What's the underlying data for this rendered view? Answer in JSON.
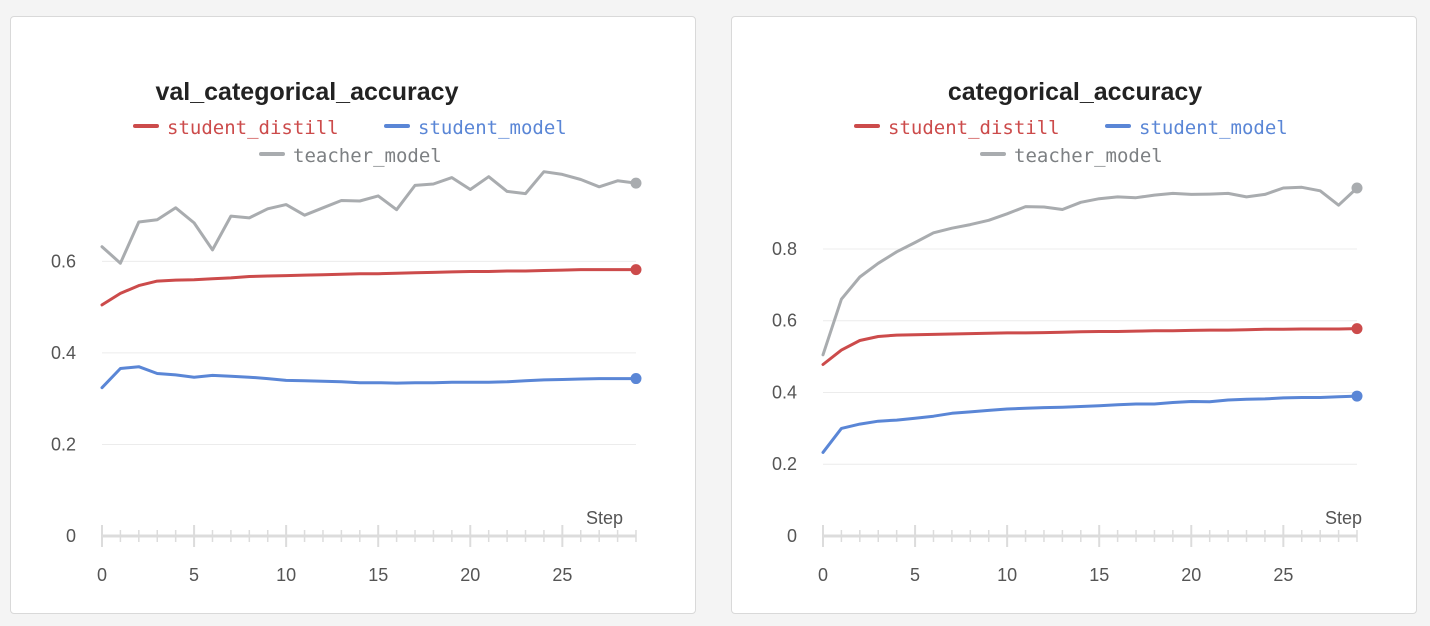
{
  "chart_data": [
    {
      "type": "line",
      "title": "val_categorical_accuracy",
      "xlabel": "Step",
      "ylabel": "",
      "xlim": [
        0,
        29
      ],
      "ylim": [
        0,
        0.78
      ],
      "xticks": [
        0,
        5,
        10,
        15,
        20,
        25
      ],
      "yticks": [
        0,
        0.2,
        0.4,
        0.6
      ],
      "ytick_labels": [
        "0",
        "0.2",
        "0.4",
        "0.6"
      ],
      "grid": true,
      "legend_position": "top",
      "x": [
        0,
        1,
        2,
        3,
        4,
        5,
        6,
        7,
        8,
        9,
        10,
        11,
        12,
        13,
        14,
        15,
        16,
        17,
        18,
        19,
        20,
        21,
        22,
        23,
        24,
        25,
        26,
        27,
        28,
        29
      ],
      "series": [
        {
          "name": "student_distill",
          "color": "#cc4b4b",
          "values": [
            0.505,
            0.53,
            0.547,
            0.557,
            0.559,
            0.56,
            0.562,
            0.564,
            0.567,
            0.568,
            0.569,
            0.57,
            0.571,
            0.572,
            0.573,
            0.573,
            0.574,
            0.575,
            0.576,
            0.577,
            0.578,
            0.578,
            0.579,
            0.579,
            0.58,
            0.581,
            0.582,
            0.582,
            0.582,
            0.582
          ]
        },
        {
          "name": "student_model",
          "color": "#5a86d6",
          "values": [
            0.324,
            0.366,
            0.37,
            0.355,
            0.352,
            0.347,
            0.351,
            0.349,
            0.347,
            0.344,
            0.34,
            0.339,
            0.338,
            0.337,
            0.335,
            0.335,
            0.334,
            0.335,
            0.335,
            0.336,
            0.336,
            0.336,
            0.337,
            0.339,
            0.341,
            0.342,
            0.343,
            0.344,
            0.344,
            0.344
          ]
        },
        {
          "name": "teacher_model",
          "color": "#a9acaf",
          "values": [
            0.632,
            0.596,
            0.686,
            0.691,
            0.717,
            0.684,
            0.625,
            0.699,
            0.695,
            0.715,
            0.724,
            0.701,
            0.717,
            0.733,
            0.732,
            0.743,
            0.713,
            0.766,
            0.769,
            0.783,
            0.757,
            0.785,
            0.753,
            0.748,
            0.796,
            0.79,
            0.779,
            0.763,
            0.776,
            0.771
          ]
        }
      ]
    },
    {
      "type": "line",
      "title": "categorical_accuracy",
      "xlabel": "Step",
      "ylabel": "",
      "xlim": [
        0,
        29
      ],
      "ylim": [
        0,
        0.995
      ],
      "xticks": [
        0,
        5,
        10,
        15,
        20,
        25
      ],
      "yticks": [
        0,
        0.2,
        0.4,
        0.6,
        0.8
      ],
      "ytick_labels": [
        "0",
        "0.2",
        "0.4",
        "0.6",
        "0.8"
      ],
      "grid": true,
      "legend_position": "top",
      "x": [
        0,
        1,
        2,
        3,
        4,
        5,
        6,
        7,
        8,
        9,
        10,
        11,
        12,
        13,
        14,
        15,
        16,
        17,
        18,
        19,
        20,
        21,
        22,
        23,
        24,
        25,
        26,
        27,
        28,
        29
      ],
      "series": [
        {
          "name": "student_distill",
          "color": "#cc4b4b",
          "values": [
            0.478,
            0.518,
            0.545,
            0.556,
            0.56,
            0.561,
            0.562,
            0.563,
            0.564,
            0.565,
            0.566,
            0.566,
            0.567,
            0.568,
            0.569,
            0.57,
            0.57,
            0.571,
            0.572,
            0.572,
            0.573,
            0.574,
            0.574,
            0.575,
            0.576,
            0.576,
            0.577,
            0.577,
            0.577,
            0.578
          ]
        },
        {
          "name": "student_model",
          "color": "#5a86d6",
          "values": [
            0.233,
            0.3,
            0.312,
            0.32,
            0.323,
            0.328,
            0.334,
            0.342,
            0.346,
            0.35,
            0.354,
            0.356,
            0.358,
            0.359,
            0.361,
            0.363,
            0.366,
            0.368,
            0.368,
            0.372,
            0.375,
            0.374,
            0.379,
            0.381,
            0.382,
            0.385,
            0.386,
            0.386,
            0.388,
            0.39
          ]
        },
        {
          "name": "teacher_model",
          "color": "#a9acaf",
          "values": [
            0.505,
            0.66,
            0.722,
            0.76,
            0.792,
            0.818,
            0.845,
            0.858,
            0.868,
            0.88,
            0.898,
            0.918,
            0.917,
            0.91,
            0.93,
            0.94,
            0.945,
            0.943,
            0.95,
            0.955,
            0.952,
            0.953,
            0.955,
            0.945,
            0.952,
            0.97,
            0.972,
            0.962,
            0.922,
            0.97
          ]
        }
      ]
    }
  ]
}
